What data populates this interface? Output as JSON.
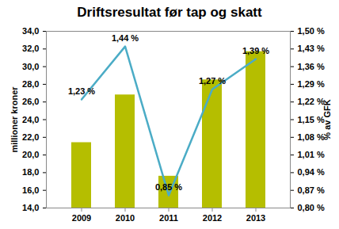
{
  "chart_data": {
    "type": "bar",
    "title": "Driftsresultat før tap og skatt",
    "categories": [
      "2009",
      "2010",
      "2011",
      "2012",
      "2013"
    ],
    "ylabel": "millioner kroner",
    "y2label": "% av GFK",
    "ylim": [
      14,
      34
    ],
    "yticks": [
      {
        "value": 14,
        "label": "14,0"
      },
      {
        "value": 16,
        "label": "16,0"
      },
      {
        "value": 18,
        "label": "18,0"
      },
      {
        "value": 20,
        "label": "20,0"
      },
      {
        "value": 22,
        "label": "22,0"
      },
      {
        "value": 24,
        "label": "24,0"
      },
      {
        "value": 26,
        "label": "26,0"
      },
      {
        "value": 28,
        "label": "28,0"
      },
      {
        "value": 30,
        "label": "30,0"
      },
      {
        "value": 32,
        "label": "32,0"
      },
      {
        "value": 34,
        "label": "34,0"
      }
    ],
    "y2lim": [
      0.8,
      1.5
    ],
    "y2ticks": [
      {
        "value": 0.8,
        "label": "0,80 %"
      },
      {
        "value": 0.87,
        "label": "0,87 %"
      },
      {
        "value": 0.94,
        "label": "0,94 %"
      },
      {
        "value": 1.01,
        "label": "1,01 %"
      },
      {
        "value": 1.08,
        "label": "1,08 %"
      },
      {
        "value": 1.15,
        "label": "1,15 %"
      },
      {
        "value": 1.22,
        "label": "1,22 %"
      },
      {
        "value": 1.29,
        "label": "1,29 %"
      },
      {
        "value": 1.36,
        "label": "1,36 %"
      },
      {
        "value": 1.43,
        "label": "1,43 %"
      },
      {
        "value": 1.5,
        "label": "1,50 %"
      }
    ],
    "grid": false,
    "data_labels": true,
    "series": [
      {
        "type": "bar",
        "color": "#b5be00",
        "values": [
          21.4,
          26.8,
          17.6,
          28.5,
          31.7
        ]
      },
      {
        "type": "line",
        "axis": "y2",
        "color": "#4bacc6",
        "marker": "none",
        "line_style": "solid",
        "values": [
          1.23,
          1.44,
          0.85,
          1.27,
          1.39
        ],
        "value_labels": [
          "1,23 %",
          "1,44 %",
          "0,85 %",
          "1,27 %",
          "1,39 %"
        ]
      }
    ]
  }
}
